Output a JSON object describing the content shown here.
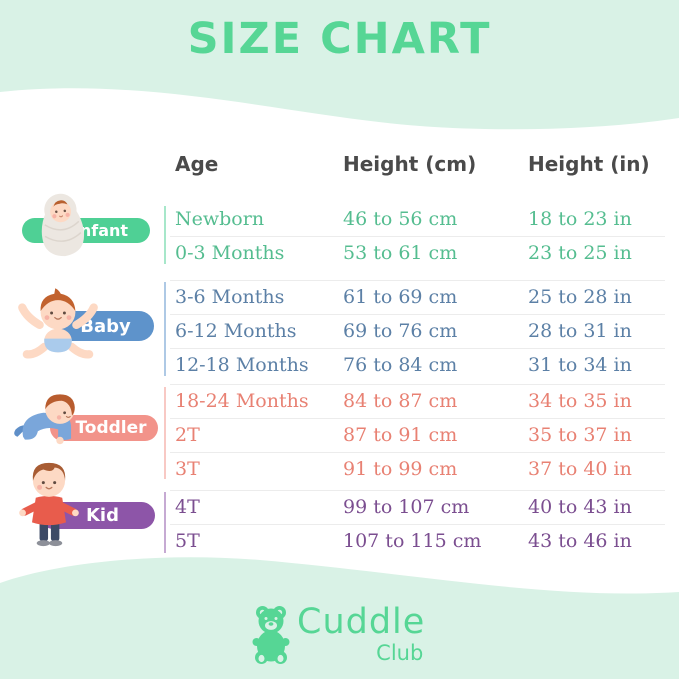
{
  "page": {
    "title": "SIZE CHART",
    "background_color": "#ffffff",
    "wave_color": "#d9f2e6",
    "accent_color": "#56d695",
    "header_text_color": "#4a4a4a"
  },
  "table": {
    "headers": {
      "age": "Age",
      "height_cm": "Height (cm)",
      "height_in": "Height (in)"
    },
    "groups": [
      {
        "label": "Infant",
        "icon": "swaddled-infant-icon",
        "pill_color": "#4fd095",
        "text_color": "#55bd90",
        "rows": [
          {
            "age": "Newborn",
            "cm": "46 to 56 cm",
            "in": "18 to 23 in"
          },
          {
            "age": "0-3 Months",
            "cm": "53 to 61 cm",
            "in": "23 to 25 in"
          }
        ]
      },
      {
        "label": "Baby",
        "icon": "sitting-baby-icon",
        "pill_color": "#5e93cb",
        "text_color": "#5c80a6",
        "rows": [
          {
            "age": "3-6 Months",
            "cm": "61 to 69 cm",
            "in": "25 to 28 in"
          },
          {
            "age": "6-12 Months",
            "cm": "69 to 76 cm",
            "in": "28 to 31 in"
          },
          {
            "age": "12-18 Months",
            "cm": "76 to 84 cm",
            "in": "31 to 34 in"
          }
        ]
      },
      {
        "label": "Toddler",
        "icon": "crawling-toddler-icon",
        "pill_color": "#f2938a",
        "text_color": "#e88173",
        "rows": [
          {
            "age": "18-24 Months",
            "cm": "84 to 87 cm",
            "in": "34 to 35 in"
          },
          {
            "age": "2T",
            "cm": "87 to 91 cm",
            "in": "35 to 37 in"
          },
          {
            "age": "3T",
            "cm": "91 to 99 cm",
            "in": "37 to 40 in"
          }
        ]
      },
      {
        "label": "Kid",
        "icon": "standing-kid-icon",
        "pill_color": "#8d55a8",
        "text_color": "#7b4e90",
        "rows": [
          {
            "age": "4T",
            "cm": "99 to 107 cm",
            "in": "40 to 43 in"
          },
          {
            "age": "5T",
            "cm": "107 to 115 cm",
            "in": "43 to 46 in"
          }
        ]
      }
    ]
  },
  "logo": {
    "name": "Cuddle",
    "sub": "Club",
    "icon": "teddy-bear-icon",
    "color": "#56d695"
  }
}
